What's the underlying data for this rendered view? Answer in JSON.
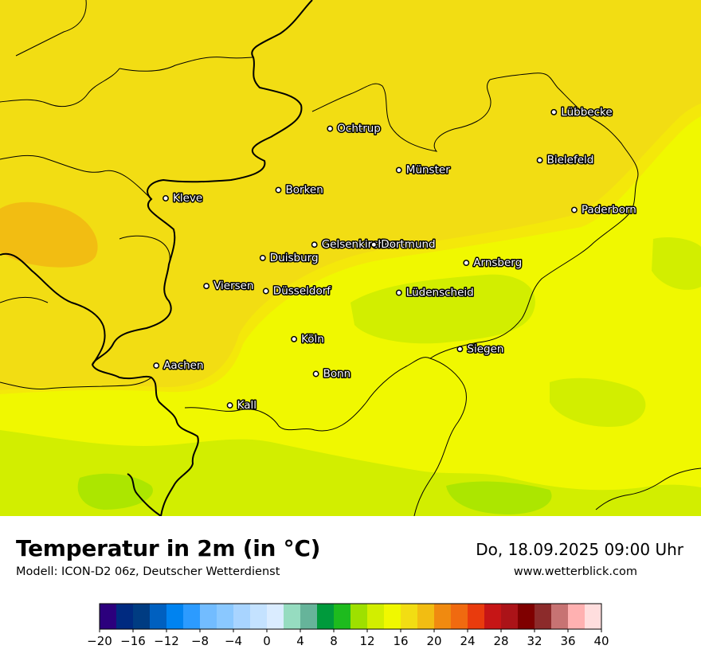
{
  "map": {
    "cities": [
      {
        "name": "Lübbecke",
        "lon": 8.62,
        "lat": 52.31
      },
      {
        "name": "Ochtrup",
        "lon": 7.19,
        "lat": 52.21
      },
      {
        "name": "Bielefeld",
        "lon": 8.53,
        "lat": 52.02
      },
      {
        "name": "Münster",
        "lon": 7.63,
        "lat": 51.96
      },
      {
        "name": "Borken",
        "lon": 6.86,
        "lat": 51.84
      },
      {
        "name": "Kleve",
        "lon": 6.14,
        "lat": 51.79
      },
      {
        "name": "Paderborn",
        "lon": 8.75,
        "lat": 51.72
      },
      {
        "name": "Gelsenkirchen",
        "lon": 7.09,
        "lat": 51.51
      },
      {
        "name": "Dortmund",
        "lon": 7.47,
        "lat": 51.51
      },
      {
        "name": "Duisburg",
        "lon": 6.76,
        "lat": 51.43
      },
      {
        "name": "Arnsberg",
        "lon": 8.06,
        "lat": 51.4
      },
      {
        "name": "Viersen",
        "lon": 6.4,
        "lat": 51.26
      },
      {
        "name": "Düsseldorf",
        "lon": 6.78,
        "lat": 51.23
      },
      {
        "name": "Lüdenscheid",
        "lon": 7.63,
        "lat": 51.22
      },
      {
        "name": "Köln",
        "lon": 6.96,
        "lat": 50.94
      },
      {
        "name": "Siegen",
        "lon": 8.02,
        "lat": 50.88
      },
      {
        "name": "Aachen",
        "lon": 6.08,
        "lat": 50.78
      },
      {
        "name": "Bonn",
        "lon": 7.1,
        "lat": 50.73
      },
      {
        "name": "Kall",
        "lon": 6.55,
        "lat": 50.54
      }
    ],
    "colors": {
      "t20": "#f2dd13",
      "t18": "#f4e80a",
      "t16": "#f0f800",
      "t14": "#d2ee00",
      "t12": "#ace600",
      "t22": "#f2bd12",
      "border": "#000000"
    }
  },
  "footer": {
    "title": "Temperatur in 2m (in °C)",
    "subtitle": "Modell: ICON-D2 06z, Deutscher Wetterdienst",
    "datetime": "Do, 18.09.2025 09:00 Uhr",
    "website": "www.wetterblick.com"
  },
  "colorbar": {
    "min": -20,
    "max": 40,
    "colors": [
      "#2c007d",
      "#002a80",
      "#003c82",
      "#0060c0",
      "#0083f0",
      "#2c9bff",
      "#72bcff",
      "#8ac8ff",
      "#a8d4ff",
      "#c4e2ff",
      "#daecff",
      "#96dcc0",
      "#66b49a",
      "#009a3c",
      "#1ebb1e",
      "#9ee000",
      "#d2ee00",
      "#f0f800",
      "#f2dd13",
      "#f2bd12",
      "#f08a10",
      "#f06a10",
      "#e93b0d",
      "#c61516",
      "#ab1318",
      "#7f0000",
      "#8c2b2b",
      "#c77373",
      "#ffb1b1",
      "#ffdede"
    ],
    "ticks": [
      {
        "v": -20,
        "label": "−20"
      },
      {
        "v": -16,
        "label": "−16"
      },
      {
        "v": -12,
        "label": "−12"
      },
      {
        "v": -8,
        "label": "−8"
      },
      {
        "v": -4,
        "label": "−4"
      },
      {
        "v": 0,
        "label": "0"
      },
      {
        "v": 4,
        "label": "4"
      },
      {
        "v": 8,
        "label": "8"
      },
      {
        "v": 12,
        "label": "12"
      },
      {
        "v": 16,
        "label": "16"
      },
      {
        "v": 20,
        "label": "20"
      },
      {
        "v": 24,
        "label": "24"
      },
      {
        "v": 28,
        "label": "28"
      },
      {
        "v": 32,
        "label": "32"
      },
      {
        "v": 36,
        "label": "36"
      },
      {
        "v": 40,
        "label": "40"
      }
    ]
  }
}
